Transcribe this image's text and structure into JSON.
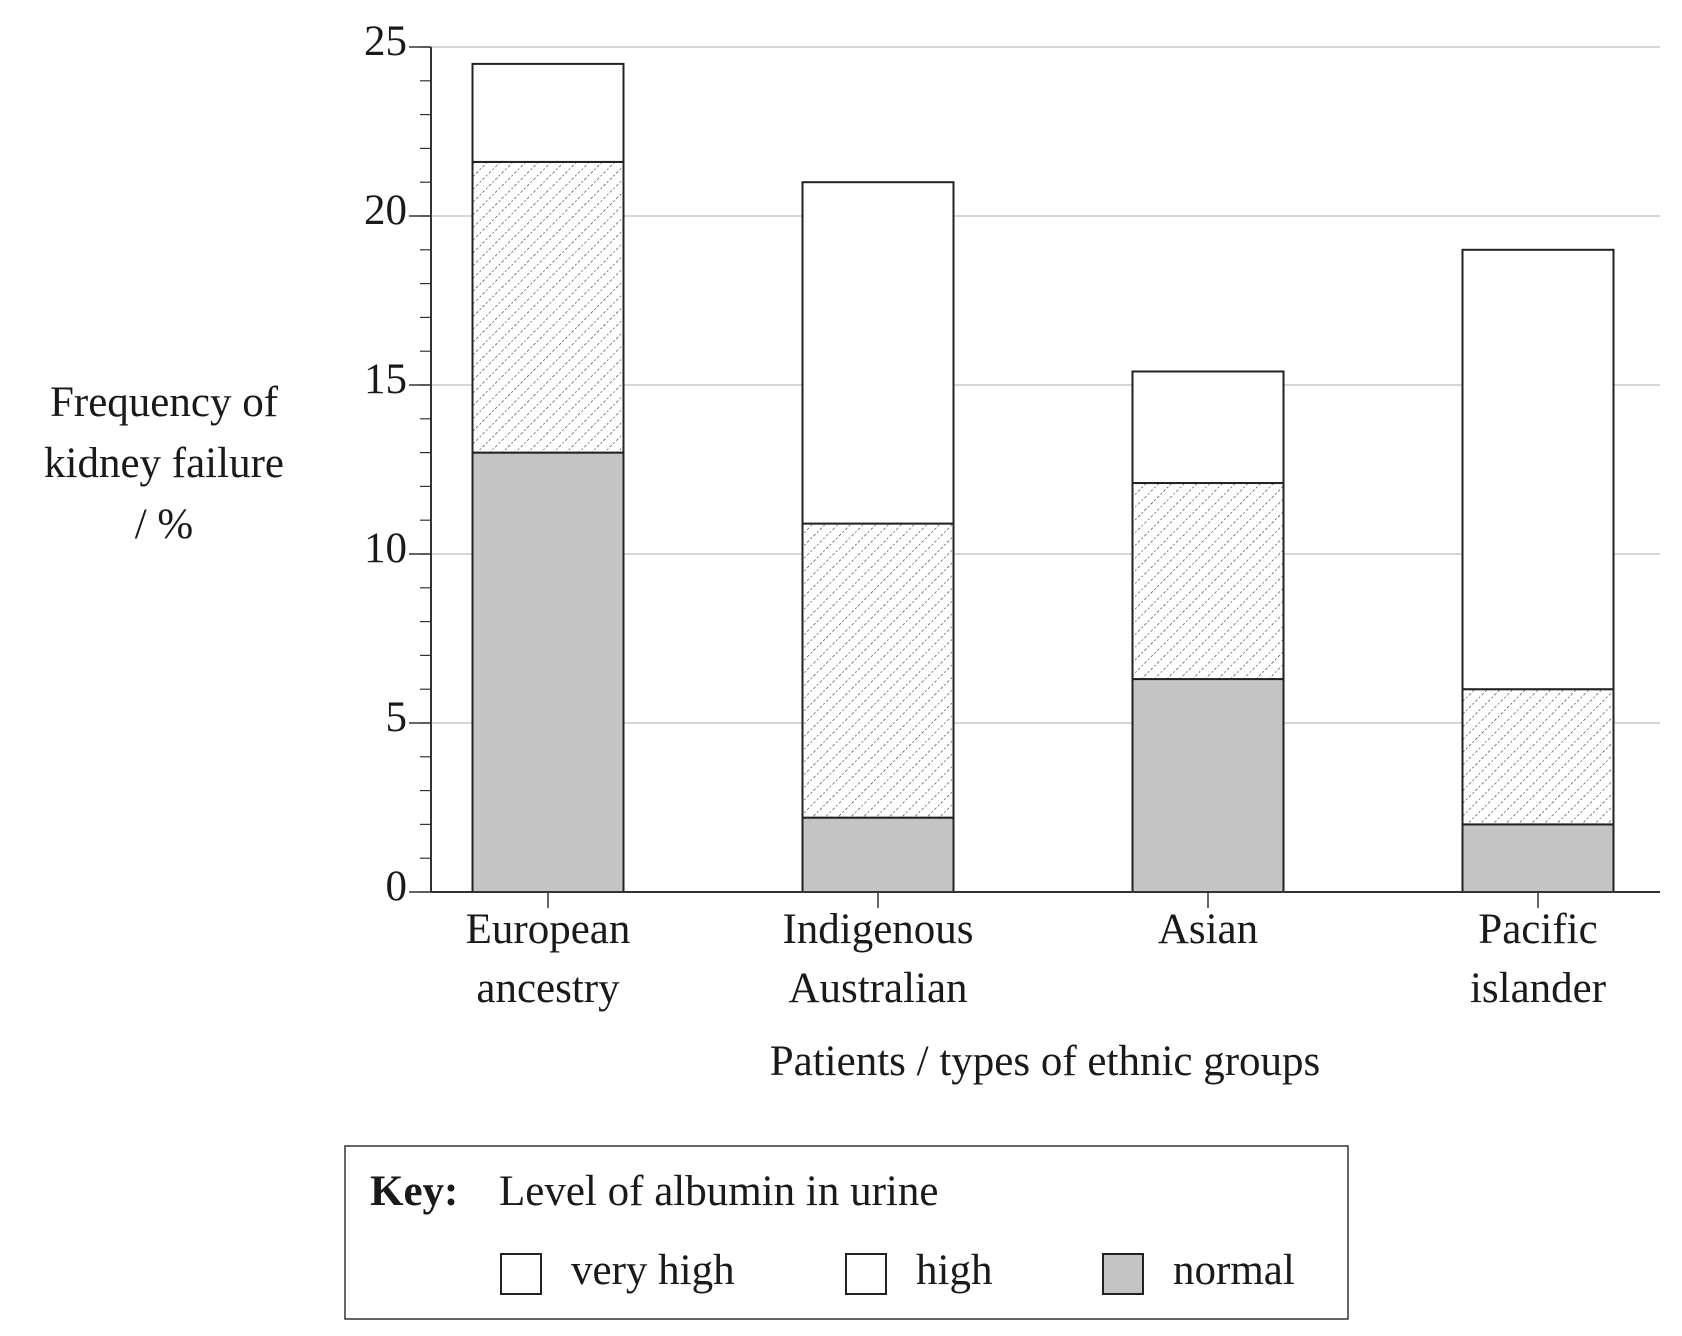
{
  "chart_data": {
    "type": "stacked-bar",
    "ylabel": [
      "Frequency of",
      "kidney failure",
      "/ %"
    ],
    "xlabel": "Patients / types of ethnic groups",
    "categories": [
      [
        "European",
        "ancestry"
      ],
      [
        "Indigenous",
        "Australian"
      ],
      [
        "Asian"
      ],
      [
        "Pacific",
        "islander"
      ]
    ],
    "series": [
      {
        "name": "normal",
        "color": "#c4c4c4",
        "values": [
          13,
          2.2,
          6.3,
          2
        ]
      },
      {
        "name": "high",
        "color": "#ffffff",
        "pattern": "hatch",
        "values": [
          8.6,
          8.7,
          5.8,
          4
        ]
      },
      {
        "name": "very high",
        "color": "#ffffff",
        "values": [
          2.9,
          10.1,
          3.3,
          13
        ]
      }
    ],
    "legend_order": [
      2,
      1,
      0
    ],
    "legend_title": "Key:",
    "legend_subtitle": "Level of albumin in urine",
    "ylim": [
      0,
      25
    ],
    "yticks": [
      0,
      5,
      10,
      15,
      20,
      25
    ],
    "yminorticks": [
      0,
      1,
      2,
      3,
      4,
      5,
      6,
      7,
      8,
      9,
      10,
      11,
      12,
      13,
      14,
      15,
      16,
      17,
      18,
      19,
      20,
      21,
      22,
      23,
      24,
      25
    ],
    "grid": true
  }
}
